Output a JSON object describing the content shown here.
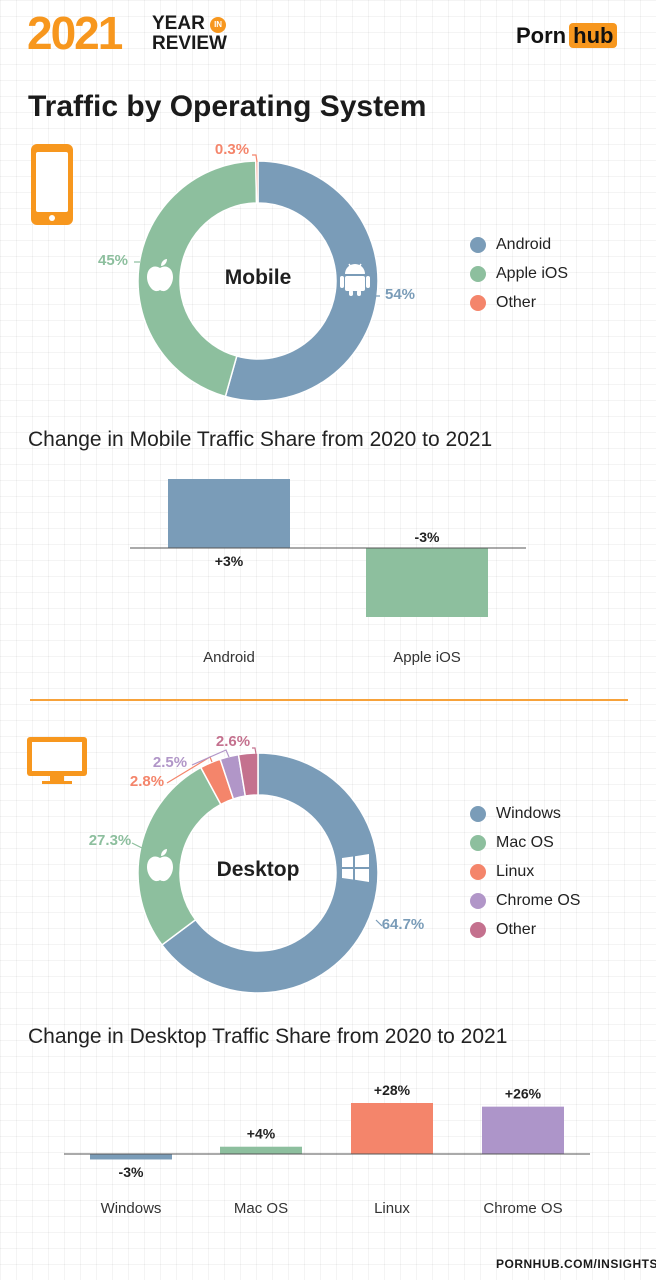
{
  "header": {
    "year": "2021",
    "year_in_review_line1": "YEAR",
    "badge": "IN",
    "year_in_review_line2": "REVIEW",
    "brand_left": "Porn",
    "brand_right": "hub"
  },
  "page_title": "Traffic by Operating System",
  "footer_url": "PORNHUB.COM/INSIGHTS",
  "icons": [
    "smartphone-icon",
    "apple-icon",
    "android-icon",
    "desktop-monitor-icon",
    "windows-icon"
  ],
  "chart_data": [
    {
      "type": "pie",
      "center_label": "Mobile",
      "categories": [
        "Android",
        "Apple iOS",
        "Other"
      ],
      "values": [
        54,
        45,
        0.3
      ],
      "labels": [
        "54%",
        "45%",
        "0.3%"
      ],
      "colors": [
        "#7a9cb8",
        "#8dbf9e",
        "#f4856b"
      ],
      "legend": "right"
    },
    {
      "type": "bar",
      "title": "Change in Mobile Traffic Share from 2020 to 2021",
      "categories": [
        "Android",
        "Apple iOS"
      ],
      "values": [
        3,
        -3
      ],
      "labels": [
        "+3%",
        "-3%"
      ],
      "colors": [
        "#7a9cb8",
        "#8dbf9e"
      ],
      "ylim": [
        -3,
        3
      ]
    },
    {
      "type": "pie",
      "center_label": "Desktop",
      "categories": [
        "Windows",
        "Mac OS",
        "Linux",
        "Chrome OS",
        "Other"
      ],
      "values": [
        64.7,
        27.3,
        2.8,
        2.5,
        2.6
      ],
      "labels": [
        "64.7%",
        "27.3%",
        "2.8%",
        "2.5%",
        "2.6%"
      ],
      "colors": [
        "#7a9cb8",
        "#8dbf9e",
        "#f4856b",
        "#b196c8",
        "#c4718e"
      ],
      "legend": "right"
    },
    {
      "type": "bar",
      "title": "Change in Desktop Traffic Share from 2020 to 2021",
      "categories": [
        "Windows",
        "Mac OS",
        "Linux",
        "Chrome OS"
      ],
      "values": [
        -3,
        4,
        28,
        26
      ],
      "labels": [
        "-3%",
        "+4%",
        "+28%",
        "+26%"
      ],
      "colors": [
        "#7a9cb8",
        "#8dbf9e",
        "#f4856b",
        "#ad95c9"
      ],
      "ylim": [
        -3,
        28
      ]
    }
  ]
}
